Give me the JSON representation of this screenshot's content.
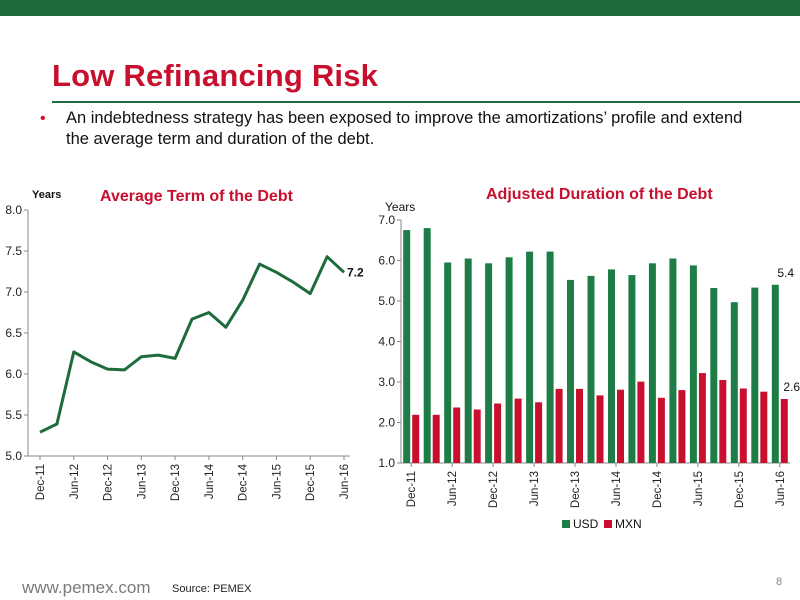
{
  "slide": {
    "title": "Low Refinancing Risk",
    "bullet_text": "An indebtedness strategy has been exposed to improve the amortizations’ profile and extend the average term and duration of the debt.",
    "footer_brand": "www.pemex.com",
    "source": "Source: PEMEX",
    "page_number": "8",
    "colors": {
      "brand_green": "#1e6b3c",
      "brand_red": "#c8102e"
    }
  },
  "chart_data": [
    {
      "type": "line",
      "title": "Average Term of the Debt",
      "ylabel": "Years",
      "ylim": [
        5.0,
        8.0
      ],
      "yticks": [
        "5.0",
        "5.5",
        "6.0",
        "6.5",
        "7.0",
        "7.5",
        "8.0"
      ],
      "tick_labels": [
        "Dec-11",
        "Jun-12",
        "Dec-12",
        "Jun-13",
        "Dec-13",
        "Jun-14",
        "Dec-14",
        "Jun-15",
        "Dec-15",
        "Jun-16"
      ],
      "x": [
        "Dec-11",
        "Mar-12",
        "Jun-12",
        "Sep-12",
        "Dec-12",
        "Mar-13",
        "Jun-13",
        "Sep-13",
        "Dec-13",
        "Mar-14",
        "Jun-14",
        "Sep-14",
        "Dec-14",
        "Mar-15",
        "Jun-15",
        "Sep-15",
        "Dec-15",
        "Mar-16",
        "Jun-16"
      ],
      "values": [
        5.29,
        5.39,
        6.27,
        6.15,
        6.06,
        6.05,
        6.21,
        6.23,
        6.19,
        6.67,
        6.75,
        6.57,
        6.9,
        7.34,
        7.24,
        7.12,
        6.98,
        7.43,
        7.24
      ],
      "end_label": "7.2",
      "color": "#1e6b3c",
      "grid": false
    },
    {
      "type": "bar",
      "title": "Adjusted Duration of the Debt",
      "ylabel": "Years",
      "ylim": [
        1.0,
        7.0
      ],
      "yticks": [
        "1.0",
        "2.0",
        "3.0",
        "4.0",
        "5.0",
        "6.0",
        "7.0"
      ],
      "tick_labels": [
        "Dec-11",
        "Jun-12",
        "Dec-12",
        "Jun-13",
        "Dec-13",
        "Jun-14",
        "Dec-14",
        "Jun-15",
        "Dec-15",
        "Jun-16"
      ],
      "categories": [
        "Dec-11",
        "Mar-12",
        "Jun-12",
        "Sep-12",
        "Dec-12",
        "Mar-13",
        "Jun-13",
        "Sep-13",
        "Dec-13",
        "Mar-14",
        "Jun-14",
        "Sep-14",
        "Dec-14",
        "Mar-15",
        "Jun-15",
        "Sep-15",
        "Dec-15",
        "Mar-16",
        "Jun-16"
      ],
      "series": [
        {
          "name": "USD",
          "color": "#1e7d46",
          "values": [
            6.75,
            6.8,
            5.95,
            6.05,
            5.93,
            6.08,
            6.22,
            6.22,
            5.52,
            5.62,
            5.78,
            5.64,
            5.93,
            6.05,
            5.88,
            5.32,
            4.97,
            5.33,
            5.4
          ]
        },
        {
          "name": "MXN",
          "color": "#c8102e",
          "values": [
            2.19,
            2.19,
            2.37,
            2.32,
            2.47,
            2.59,
            2.5,
            2.83,
            2.83,
            2.67,
            2.81,
            3.01,
            2.61,
            2.8,
            3.22,
            3.05,
            2.84,
            2.76,
            2.58
          ]
        }
      ],
      "end_labels": {
        "USD": "5.4",
        "MXN": "2.6"
      },
      "legend": "bottom",
      "grid": false
    }
  ]
}
